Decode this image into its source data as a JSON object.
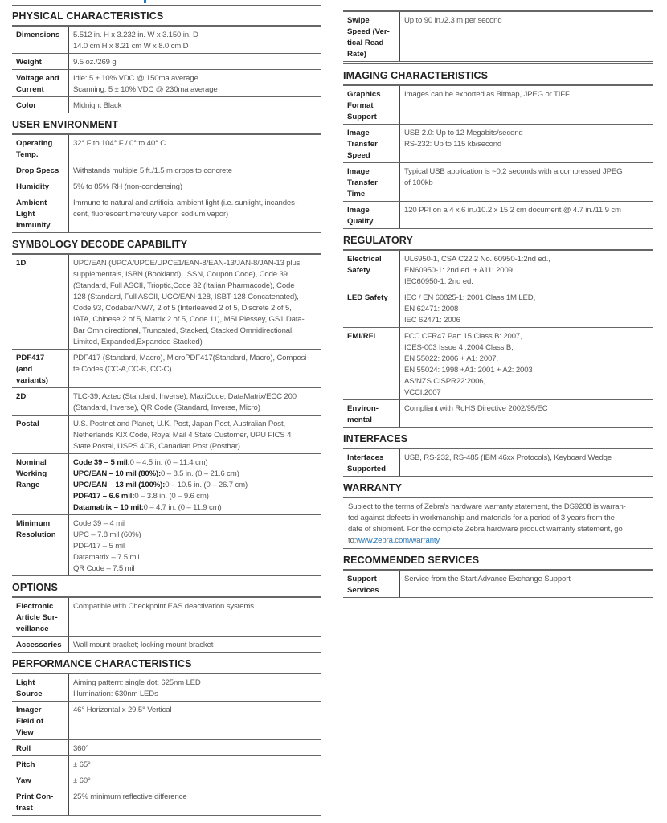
{
  "colors": {
    "accent": "#1f7ac4",
    "link": "#2a7ab8"
  },
  "left": [
    {
      "title": "PHYSICAL CHARACTERISTICS",
      "rows": [
        {
          "label": [
            "Dimensions"
          ],
          "value": [
            "5.512 in. H x 3.232 in. W x 3.150 in. D",
            "14.0 cm H x 8.21 cm W x 8.0 cm D"
          ]
        },
        {
          "label": [
            "Weight"
          ],
          "value": [
            "9.5 oz./269 g"
          ]
        },
        {
          "label": [
            "Voltage and",
            "Current"
          ],
          "value": [
            "Idle: 5 ± 10% VDC @ 150ma average",
            "Scanning: 5 ± 10% VDC @ 230ma average"
          ]
        },
        {
          "label": [
            "Color"
          ],
          "value": [
            "Midnight Black"
          ]
        }
      ]
    },
    {
      "title": "USER ENVIRONMENT",
      "rows": [
        {
          "label": [
            "Operating",
            "Temp."
          ],
          "value": [
            "32° F to 104° F / 0° to 40° C"
          ]
        },
        {
          "label": [
            "Drop Specs"
          ],
          "value": [
            "Withstands multiple 5 ft./1.5 m drops to concrete"
          ]
        },
        {
          "label": [
            "Humidity"
          ],
          "value": [
            "5% to 85% RH (non-condensing)"
          ]
        },
        {
          "label": [
            "Ambient",
            "Light",
            "Immunity"
          ],
          "value": [
            "Immune to natural and artificial ambient light (i.e. sunlight, incandes-",
            "cent, fluorescent,mercury vapor, sodium vapor)"
          ]
        }
      ]
    },
    {
      "title": "SYMBOLOGY DECODE CAPABILITY",
      "rows": [
        {
          "label": [
            "1D"
          ],
          "value": [
            "UPC/EAN (UPCA/UPCE/UPCE1/EAN-8/EAN-13/JAN-8/JAN-13 plus",
            "supplementals, ISBN (Bookland), ISSN, Coupon Code), Code 39",
            "(Standard, Full ASCII, Trioptic,Code 32 (Italian Pharmacode), Code",
            "128 (Standard, Full ASCII, UCC/EAN-128, ISBT-128 Concatenated),",
            "Code 93, Codabar/NW7, 2 of 5 (Interleaved 2 of 5, Discrete 2 of 5,",
            "IATA, Chinese 2 of 5, Matrix 2 of 5, Code 11), MSI Plessey, GS1 Data-",
            "Bar Omnidirectional, Truncated, Stacked, Stacked Omnidirectional,",
            "Limited, Expanded,Expanded Stacked)"
          ]
        },
        {
          "label": [
            "PDF417",
            "(and",
            "variants)"
          ],
          "value": [
            "PDF417 (Standard, Macro), MicroPDF417(Standard, Macro), Composi-",
            "te Codes (CC-A,CC-B, CC-C)"
          ]
        },
        {
          "label": [
            "2D"
          ],
          "value": [
            "TLC-39, Aztec (Standard, Inverse), MaxiCode, DataMatrix/ECC 200",
            "(Standard, Inverse), QR Code (Standard, Inverse, Micro)"
          ]
        },
        {
          "label": [
            "Postal"
          ],
          "value": [
            "U.S. Postnet and Planet, U.K. Post, Japan Post, Australian Post,",
            "Netherlands KIX Code, Royal Mail 4 State Customer, UPU FICS 4",
            "State Postal, USPS 4CB, Canadian Post (Postbar)"
          ]
        },
        {
          "label": [
            "Nominal",
            "Working",
            "Range"
          ],
          "value": [
            {
              "bold": "Code 39 – 5 mil:",
              "text": "0 – 4.5 in. (0 – 11.4 cm)"
            },
            {
              "bold": "UPC/EAN – 10 mil (80%):",
              "text": "0 – 8.5 in. (0 – 21.6 cm)"
            },
            {
              "bold": "UPC/EAN – 13 mil (100%):",
              "text": "0 – 10.5 in. (0 – 26.7 cm)"
            },
            {
              "bold": "PDF417 – 6.6 mil:",
              "text": "0 – 3.8 in. (0 – 9.6 cm)"
            },
            {
              "bold": "Datamatrix – 10 mil:",
              "text": "0 – 4.7 in. (0 – 11.9 cm)"
            }
          ]
        },
        {
          "label": [
            "Minimum",
            "Resolution"
          ],
          "value": [
            "Code 39 – 4 mil",
            "UPC – 7.8 mil (60%)",
            "PDF417 – 5 mil",
            "Datamatrix – 7.5 mil",
            "QR Code – 7.5 mil"
          ]
        }
      ]
    },
    {
      "title": "OPTIONS",
      "rows": [
        {
          "label": [
            "Electronic",
            "Article Sur-",
            "veillance"
          ],
          "value": [
            "Compatible with Checkpoint EAS deactivation systems"
          ]
        },
        {
          "label": [
            "Accessories"
          ],
          "value": [
            "Wall mount bracket; locking mount bracket"
          ]
        }
      ]
    },
    {
      "title": "PERFORMANCE CHARACTERISTICS",
      "rows": [
        {
          "label": [
            "Light",
            "Source"
          ],
          "value": [
            "Aiming pattern: single dot, 625nm LED",
            "Illumination: 630nm LEDs"
          ]
        },
        {
          "label": [
            "Imager",
            "Field of",
            "View"
          ],
          "value": [
            "46° Horizontal x 29.5° Vertical"
          ]
        },
        {
          "label": [
            "Roll"
          ],
          "value": [
            "360°"
          ]
        },
        {
          "label": [
            "Pitch"
          ],
          "value": [
            "± 65°"
          ]
        },
        {
          "label": [
            "Yaw"
          ],
          "value": [
            "± 60°"
          ]
        },
        {
          "label": [
            "Print Con-",
            "trast"
          ],
          "value": [
            "25% minimum reflective difference"
          ]
        }
      ]
    }
  ],
  "right": [
    {
      "title": "",
      "double_bottom": true,
      "rows": [
        {
          "label": [
            "Swipe",
            "Speed (Ver-",
            "tical Read",
            "Rate)"
          ],
          "value": [
            "Up to 90 in./2.3 m per second"
          ]
        }
      ]
    },
    {
      "title": "IMAGING CHARACTERISTICS",
      "rows": [
        {
          "label": [
            "Graphics",
            "Format",
            "Support"
          ],
          "value": [
            "Images can be exported as Bitmap, JPEG or TIFF"
          ]
        },
        {
          "label": [
            "Image",
            "Transfer",
            "Speed"
          ],
          "value": [
            "USB 2.0: Up to 12 Megabits/second",
            "RS-232: Up to 115 kb/second"
          ]
        },
        {
          "label": [
            "Image",
            "Transfer",
            "Time"
          ],
          "value": [
            "Typical USB application is ~0.2 seconds with a compressed JPEG",
            "of 100kb"
          ]
        },
        {
          "label": [
            "Image",
            "Quality"
          ],
          "value": [
            "120 PPI on a 4 x 6 in./10.2 x 15.2 cm document @ 4.7 in./11.9 cm"
          ]
        }
      ]
    },
    {
      "title": "REGULATORY",
      "rows": [
        {
          "label": [
            "Electrical",
            "Safety"
          ],
          "value": [
            "UL6950-1, CSA C22.2 No. 60950-1:2nd ed.,",
            "EN60950-1: 2nd ed. + A11: 2009",
            "IEC60950-1: 2nd ed."
          ]
        },
        {
          "label": [
            "LED Safety"
          ],
          "value": [
            "IEC / EN 60825-1: 2001 Class 1M LED,",
            "EN 62471: 2008",
            "IEC 62471: 2006"
          ]
        },
        {
          "label": [
            "EMI/RFI"
          ],
          "value": [
            "FCC CFR47 Part 15 Class B: 2007,",
            "ICES-003 Issue 4 :2004 Class B,",
            "EN 55022: 2006 + A1: 2007,",
            "EN 55024: 1998 +A1: 2001 + A2: 2003",
            "AS/NZS CISPR22:2006,",
            "VCCI:2007"
          ]
        },
        {
          "label": [
            "Environ-",
            "mental"
          ],
          "value": [
            "Compliant with RoHS Directive 2002/95/EC"
          ]
        }
      ]
    },
    {
      "title": "INTERFACES",
      "rows": [
        {
          "label": [
            "Interfaces",
            "Supported"
          ],
          "value": [
            "USB, RS-232, RS-485 (IBM 46xx Protocols), Keyboard Wedge"
          ]
        }
      ]
    },
    {
      "title": "WARRANTY",
      "paragraph": [
        "Subject to the terms of Zebra's hardware warranty statement, the DS9208 is warran-",
        "ted against defects in workmanship and materials for a period of 3 years from the",
        "date of shipment. For the complete Zebra hardware product warranty statement, go"
      ],
      "link_prefix": "to:",
      "link": "www.zebra.com/warranty"
    },
    {
      "title": "RECOMMENDED SERVICES",
      "rows": [
        {
          "label": [
            "Support",
            "Services"
          ],
          "value": [
            "Service from the Start Advance Exchange Support"
          ]
        }
      ]
    }
  ]
}
